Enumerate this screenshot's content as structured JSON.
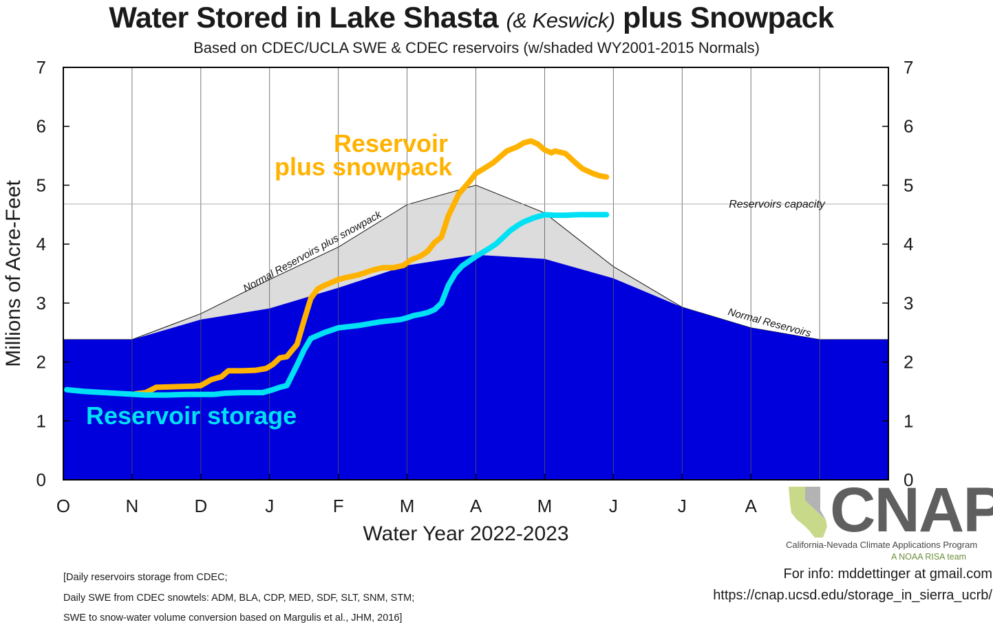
{
  "title": {
    "main": "Water Stored in Lake Shasta",
    "paren": "(& Keswick)",
    "tail": "plus Snowpack"
  },
  "subtitle": "Based on CDEC/UCLA SWE & CDEC reservoirs (w/shaded WY2001-2015 Normals)",
  "chart_data": {
    "type": "area",
    "xlabel": "Water Year 2022-2023",
    "ylabel": "Millions of Acre-Feet",
    "ylim": [
      0,
      7
    ],
    "yticks": [
      "0",
      "1",
      "2",
      "3",
      "4",
      "5",
      "6",
      "7"
    ],
    "months": [
      "O",
      "N",
      "D",
      "J",
      "F",
      "M",
      "A",
      "M",
      "J",
      "J",
      "A"
    ],
    "xlim_months": [
      0,
      12
    ],
    "grid": true,
    "capacity": {
      "value": 4.68,
      "label": "Reservoirs capacity"
    },
    "normal_reservoirs": {
      "name": "Normal Reservoirs",
      "x": [
        0,
        1,
        2,
        3,
        4,
        5,
        6,
        7,
        8,
        9,
        10,
        11,
        12
      ],
      "y": [
        2.38,
        2.38,
        2.72,
        2.91,
        3.26,
        3.64,
        3.82,
        3.75,
        3.42,
        2.93,
        2.58,
        2.38,
        2.38
      ]
    },
    "normal_reservoirs_plus_snowpack": {
      "name": "Normal Reservoirs plus snowpack",
      "x": [
        0,
        1,
        2,
        3,
        4,
        5,
        6,
        7,
        8,
        9,
        10,
        11,
        12
      ],
      "y": [
        2.38,
        2.38,
        2.82,
        3.4,
        3.95,
        4.67,
        5.0,
        4.53,
        3.62,
        2.93,
        2.58,
        2.38,
        2.38
      ]
    },
    "series": [
      {
        "name": "Reservoir plus snowpack",
        "label_lines": [
          "Reservoir",
          "plus snowpack"
        ],
        "color": "#FFB200",
        "x": [
          1.05,
          1.2,
          1.35,
          1.6,
          1.9,
          2.0,
          2.15,
          2.3,
          2.4,
          2.6,
          2.8,
          2.95,
          3.05,
          3.15,
          3.25,
          3.4,
          3.5,
          3.6,
          3.7,
          3.8,
          3.9,
          4.0,
          4.1,
          4.3,
          4.5,
          4.65,
          4.8,
          4.95,
          5.05,
          5.2,
          5.3,
          5.4,
          5.5,
          5.6,
          5.65,
          5.75,
          5.9,
          6.0,
          6.1,
          6.25,
          6.35,
          6.45,
          6.6,
          6.7,
          6.8,
          6.9,
          7.0,
          7.1,
          7.15,
          7.3,
          7.45,
          7.55,
          7.7,
          7.8,
          7.9
        ],
        "y": [
          1.46,
          1.48,
          1.57,
          1.58,
          1.59,
          1.6,
          1.7,
          1.75,
          1.85,
          1.85,
          1.86,
          1.89,
          1.96,
          2.07,
          2.09,
          2.3,
          2.7,
          3.08,
          3.24,
          3.3,
          3.35,
          3.4,
          3.43,
          3.48,
          3.56,
          3.6,
          3.6,
          3.64,
          3.73,
          3.8,
          3.88,
          4.03,
          4.12,
          4.48,
          4.6,
          4.85,
          5.05,
          5.2,
          5.27,
          5.38,
          5.48,
          5.58,
          5.65,
          5.72,
          5.75,
          5.7,
          5.6,
          5.55,
          5.58,
          5.54,
          5.38,
          5.28,
          5.2,
          5.16,
          5.14
        ]
      },
      {
        "name": "Reservoir storage",
        "label_lines": [
          "Reservoir storage"
        ],
        "color": "#00E1F5",
        "x": [
          0.05,
          0.3,
          0.6,
          0.9,
          1.2,
          1.5,
          1.8,
          2.0,
          2.2,
          2.35,
          2.6,
          2.9,
          3.05,
          3.15,
          3.25,
          3.4,
          3.5,
          3.6,
          3.7,
          3.8,
          4.0,
          4.3,
          4.6,
          4.9,
          5.0,
          5.1,
          5.2,
          5.3,
          5.4,
          5.5,
          5.6,
          5.7,
          5.8,
          6.0,
          6.2,
          6.3,
          6.4,
          6.5,
          6.6,
          6.7,
          6.85,
          7.0,
          7.15,
          7.3,
          7.5,
          7.7,
          7.9
        ],
        "y": [
          1.53,
          1.5,
          1.48,
          1.46,
          1.44,
          1.44,
          1.45,
          1.45,
          1.45,
          1.47,
          1.48,
          1.48,
          1.53,
          1.57,
          1.6,
          1.95,
          2.2,
          2.4,
          2.45,
          2.5,
          2.58,
          2.62,
          2.68,
          2.72,
          2.75,
          2.79,
          2.81,
          2.84,
          2.89,
          3.0,
          3.3,
          3.5,
          3.63,
          3.79,
          3.93,
          4.01,
          4.12,
          4.23,
          4.31,
          4.38,
          4.45,
          4.5,
          4.49,
          4.49,
          4.5,
          4.5,
          4.5
        ]
      }
    ]
  },
  "notes": [
    "[Daily reservoirs storage from CDEC;",
    "Daily SWE from CDEC snowtels: ADM, BLA, CDP, MED, SDF, SLT, SNM, STM;",
    "SWE to snow-water volume conversion based on Margulis et al., JHM, 2016]"
  ],
  "info": {
    "contact": "For info: mddettinger at gmail.com",
    "url": "https://cnap.ucsd.edu/storage_in_sierra_ucrb/"
  },
  "logo": {
    "word": "CNAP",
    "tagline": "California-Nevada Climate Applications Program",
    "subtag": "A NOAA RISA team"
  }
}
